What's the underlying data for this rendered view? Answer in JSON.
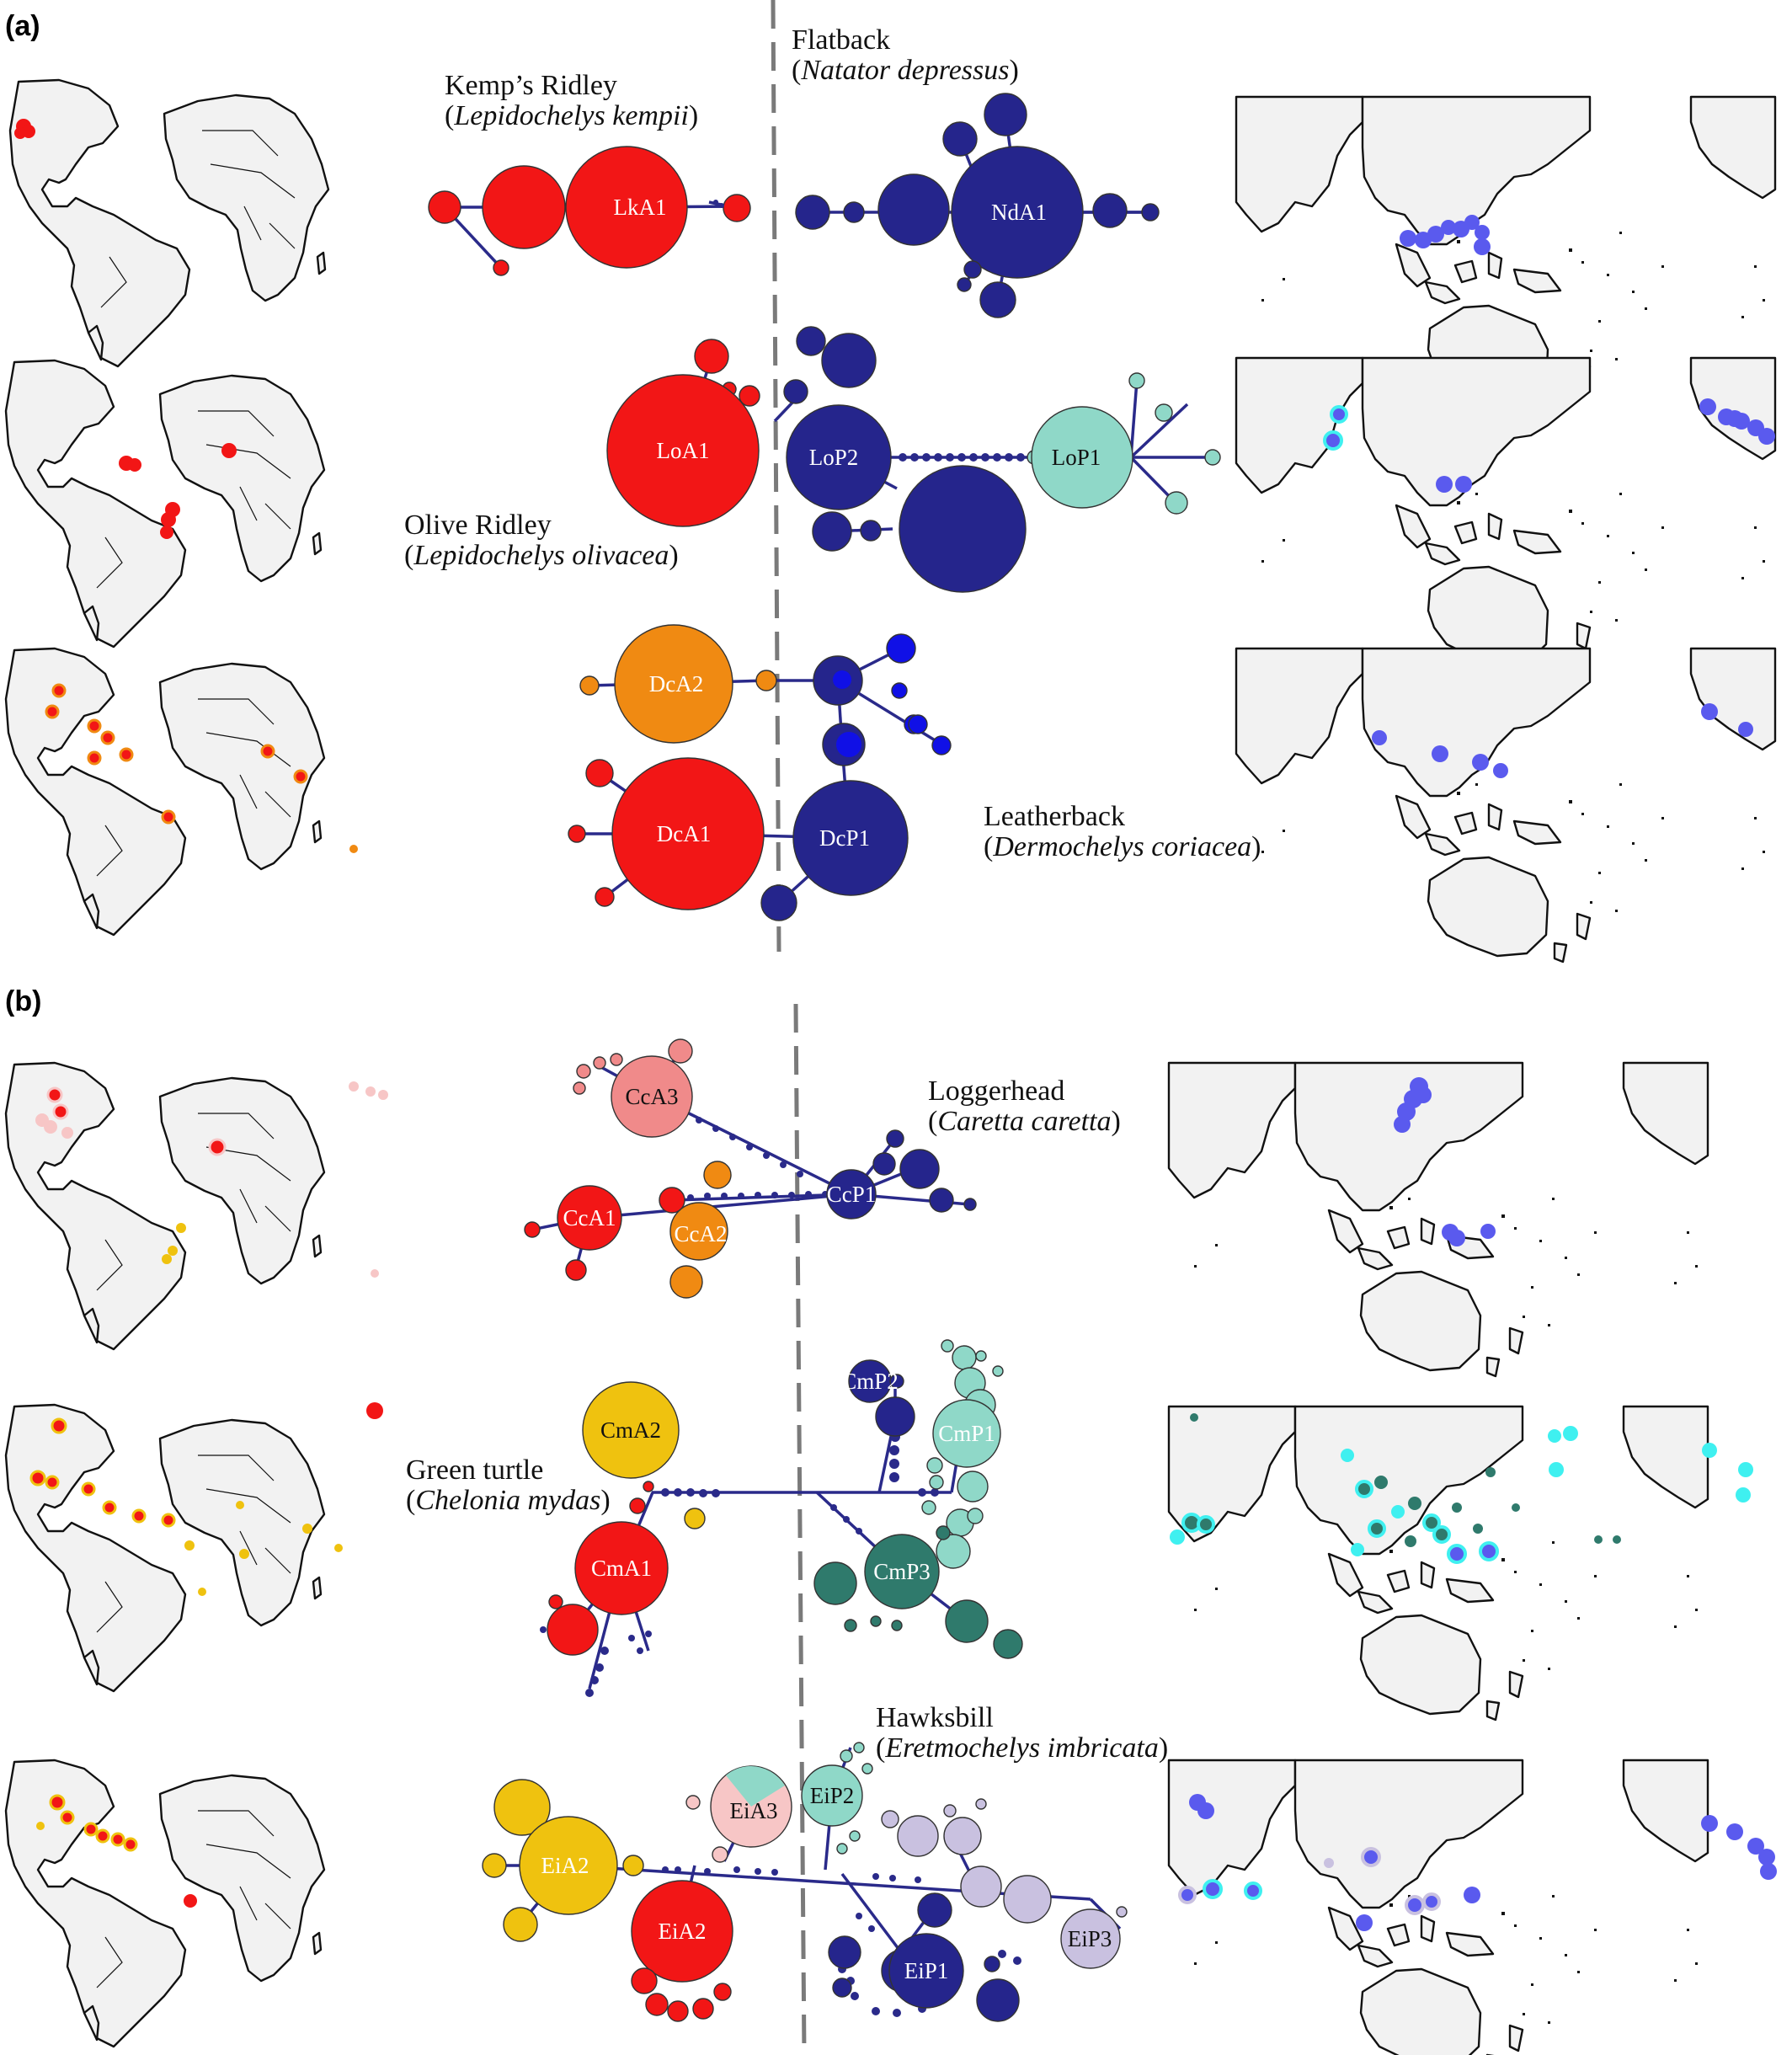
{
  "panels": {
    "a": {
      "label": "(a)"
    },
    "b": {
      "label": "(b)"
    }
  },
  "colors": {
    "atlantic_red": "#f21616",
    "atlantic_orange": "#f08a12",
    "atlantic_yellow": "#efc20f",
    "atlantic_pink": "#f08a8a",
    "atlantic_lightpink": "#f7c6c6",
    "pacific_navy": "#25258c",
    "pacific_blue": "#1010e6",
    "pacific_teal": "#8fd8c8",
    "pacific_darkteal": "#2f7a6c",
    "pacific_lavender": "#c9c1e0",
    "map_point_blue": "#5a5aee",
    "map_point_cyan": "#3ff0f0",
    "divider": "#7a7a7a"
  },
  "species": {
    "kemps": {
      "common": "Kemp’s Ridley",
      "latin": "Lepidochelys kempii"
    },
    "flatback": {
      "common": "Flatback",
      "latin": "Natator depressus"
    },
    "olive": {
      "common": "Olive Ridley",
      "latin": "Lepidochelys olivacea"
    },
    "leatherback": {
      "common": "Leatherback",
      "latin": "Dermochelys coriacea"
    },
    "loggerhead": {
      "common": "Loggerhead",
      "latin": "Caretta caretta"
    },
    "green": {
      "common": "Green turtle",
      "latin": "Chelonia mydas"
    },
    "hawksbill": {
      "common": "Hawksbill",
      "latin": "Eretmochelys imbricata"
    }
  },
  "haplogroups": {
    "LkA1": "LkA1",
    "NdA1": "NdA1",
    "LoA1": "LoA1",
    "LoP2": "LoP2",
    "LoP1": "LoP1",
    "DcA2": "DcA2",
    "DcA1": "DcA1",
    "DcP1": "DcP1",
    "CcA3": "CcA3",
    "CcA1": "CcA1",
    "CcA2": "CcA2",
    "CcP1": "CcP1",
    "CmP2": "CmP2",
    "CmA2": "CmA2",
    "CmP1": "CmP1",
    "CmA1": "CmA1",
    "CmP3": "CmP3",
    "EiA3": "EiA3",
    "EiP2": "EiP2",
    "EiA2_top": "EiA2",
    "EiA2_bottom": "EiA2",
    "EiP3": "EiP3",
    "EiP1": "EiP1"
  }
}
